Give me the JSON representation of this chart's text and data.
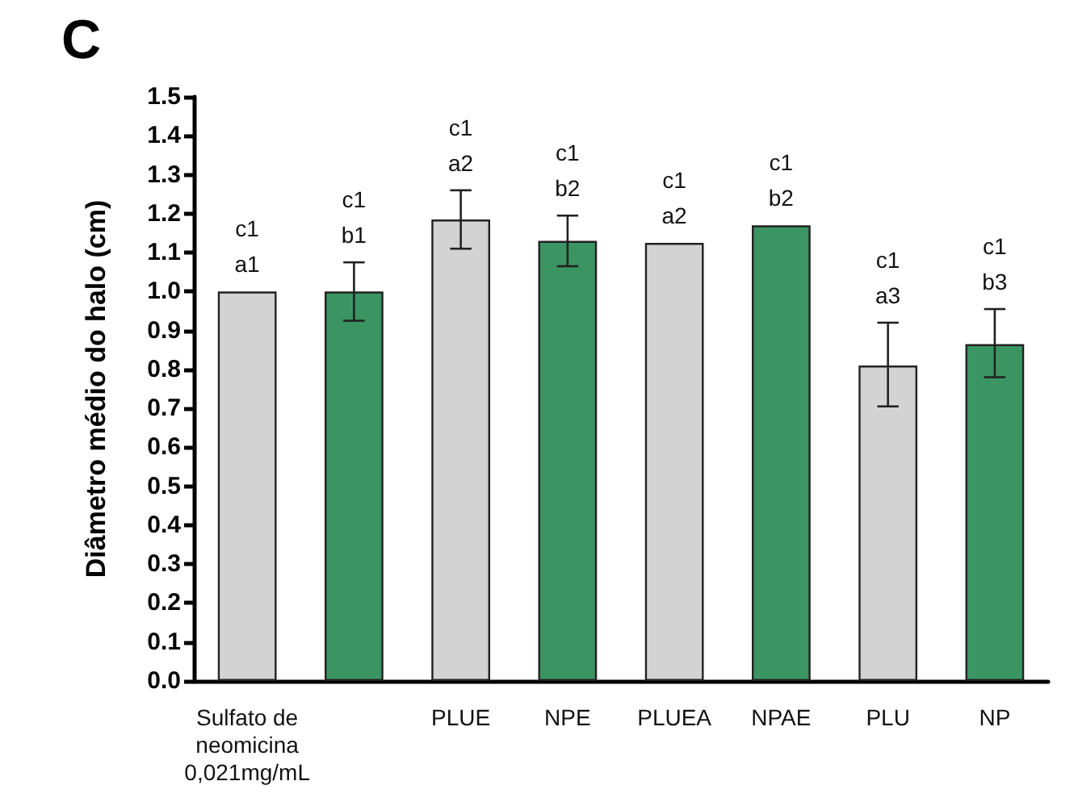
{
  "chart_data": {
    "type": "bar",
    "ylabel": "Diâmetro médio do halo (cm)",
    "annotations": [
      "C"
    ],
    "categories": [
      "Sulfato de\nneomicina\n0,021mg/mL",
      null,
      "PLUE",
      "NPE",
      "PLUEA",
      "NPAE",
      "PLU",
      "NP"
    ],
    "values": [
      1.0,
      1.0,
      1.185,
      1.13,
      1.125,
      1.17,
      0.81,
      0.865
    ],
    "errors": [
      null,
      0.075,
      0.075,
      0.065,
      null,
      null,
      [
        0.705,
        0.92
      ],
      [
        0.78,
        0.955
      ]
    ],
    "colors": [
      "#d3d3d3",
      "#3b9562",
      "#d3d3d3",
      "#3b9562",
      "#d3d3d3",
      "#3b9562",
      "#d3d3d3",
      "#3b9562"
    ],
    "value_labels": [
      "c1\na1",
      "c1\nb1",
      "c1\na2",
      "c1\nb2",
      "c1\na2",
      "c1\nb2",
      "c1\na3",
      "c1\nb3"
    ],
    "ylim": [
      0,
      1.5
    ],
    "yticks": [
      {
        "value": 0,
        "label": "0.0"
      },
      0.1,
      0.2,
      0.3,
      0.4,
      0.5,
      0.6,
      0.7,
      0.8,
      0.9,
      {
        "value": 1,
        "label": "1.0"
      },
      1.1,
      1.2,
      1.3,
      1.4,
      1.5
    ],
    "grid": false
  }
}
